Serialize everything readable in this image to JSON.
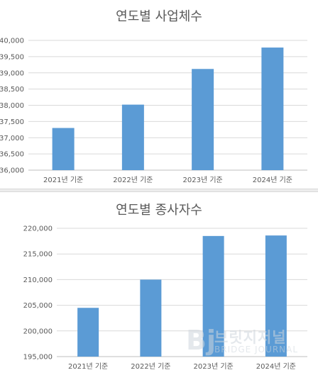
{
  "chart_data": [
    {
      "type": "bar",
      "title": "연도별 사업체수",
      "categories": [
        "2021년 기준",
        "2022년 기준",
        "2023년 기준",
        "2024년 기준"
      ],
      "values": [
        37300,
        38020,
        39120,
        39780
      ],
      "ylim": [
        36000,
        40000
      ],
      "yticks": [
        "36,000",
        "36,500",
        "37,000",
        "37,500",
        "38,000",
        "38,500",
        "39,000",
        "39,500",
        "40,000"
      ],
      "ytick_values": [
        36000,
        36500,
        37000,
        37500,
        38000,
        38500,
        39000,
        39500,
        40000
      ],
      "grid": true,
      "bar_color": "#5b9bd5"
    },
    {
      "type": "bar",
      "title": "연도별 종사자수",
      "categories": [
        "2021년 기준",
        "2022년 기준",
        "2023년 기준",
        "2024년 기준"
      ],
      "values": [
        204500,
        210000,
        218500,
        218600
      ],
      "ylim": [
        195000,
        220000
      ],
      "yticks": [
        "195,000",
        "200,000",
        "205,000",
        "210,000",
        "215,000",
        "220,000"
      ],
      "ytick_values": [
        195000,
        200000,
        205000,
        210000,
        215000,
        220000
      ],
      "grid": true,
      "bar_color": "#5b9bd5"
    }
  ],
  "watermark": {
    "logo_text": "Bj",
    "name_kr": "브릿지저널",
    "name_en": "BRIDGE JOURNAL"
  }
}
